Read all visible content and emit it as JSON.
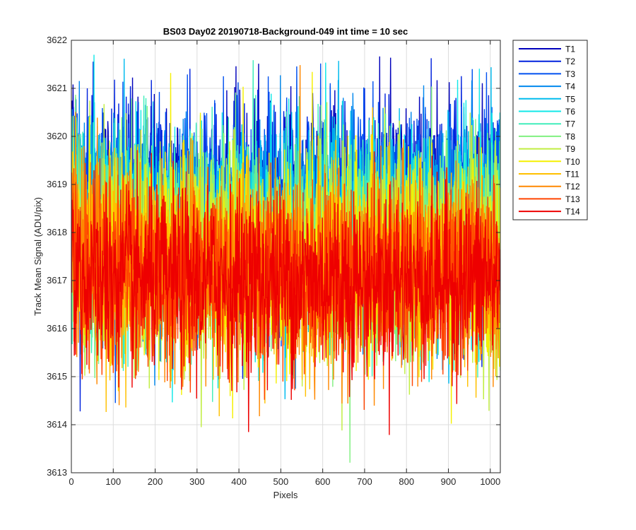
{
  "chart_data": {
    "type": "line",
    "title": "BS03 Day02 20190718-Background-049 int time = 10 sec",
    "xlabel": "Pixels",
    "ylabel": "Track Mean Signal (ADU/pix)",
    "xlim": [
      0,
      1024
    ],
    "ylim": [
      3613,
      3622
    ],
    "xticks": [
      "0",
      "100",
      "200",
      "300",
      "400",
      "500",
      "600",
      "700",
      "800",
      "900",
      "1000"
    ],
    "yticks": [
      "3613",
      "3614",
      "3615",
      "3616",
      "3617",
      "3618",
      "3619",
      "3620",
      "3621",
      "3622"
    ],
    "grid": true,
    "legend_position": "outside-top-right",
    "n_points": 1024,
    "series": [
      {
        "name": "T1",
        "color": "#0000bb",
        "mean": 3618.6,
        "noise_sd": 1.05,
        "edge_boost": 0.6
      },
      {
        "name": "T2",
        "color": "#0022dd",
        "mean": 3618.5,
        "noise_sd": 1.05,
        "edge_boost": 0.6
      },
      {
        "name": "T3",
        "color": "#0050f0",
        "mean": 3618.4,
        "noise_sd": 1.05,
        "edge_boost": 0.6
      },
      {
        "name": "T4",
        "color": "#0088ee",
        "mean": 3618.3,
        "noise_sd": 1.05,
        "edge_boost": 0.5
      },
      {
        "name": "T5",
        "color": "#00bbee",
        "mean": 3618.1,
        "noise_sd": 1.05,
        "edge_boost": 0.5
      },
      {
        "name": "T6",
        "color": "#10e8e8",
        "mean": 3617.9,
        "noise_sd": 1.1,
        "edge_boost": 0.5
      },
      {
        "name": "T7",
        "color": "#40eebb",
        "mean": 3617.8,
        "noise_sd": 1.1,
        "edge_boost": 0.5
      },
      {
        "name": "T8",
        "color": "#80f080",
        "mean": 3617.7,
        "noise_sd": 1.1,
        "edge_boost": 0.4
      },
      {
        "name": "T9",
        "color": "#c0ee40",
        "mean": 3617.6,
        "noise_sd": 1.1,
        "edge_boost": 0.4
      },
      {
        "name": "T10",
        "color": "#f5f000",
        "mean": 3617.4,
        "noise_sd": 1.1,
        "edge_boost": 0.4
      },
      {
        "name": "T11",
        "color": "#ffc000",
        "mean": 3617.3,
        "noise_sd": 1.0,
        "edge_boost": 0.3
      },
      {
        "name": "T12",
        "color": "#ff8800",
        "mean": 3617.2,
        "noise_sd": 1.0,
        "edge_boost": 0.3
      },
      {
        "name": "T13",
        "color": "#ff4400",
        "mean": 3617.1,
        "noise_sd": 0.95,
        "edge_boost": 0.3
      },
      {
        "name": "T14",
        "color": "#ee0000",
        "mean": 3617.0,
        "noise_sd": 0.95,
        "edge_boost": 0.3
      }
    ]
  }
}
